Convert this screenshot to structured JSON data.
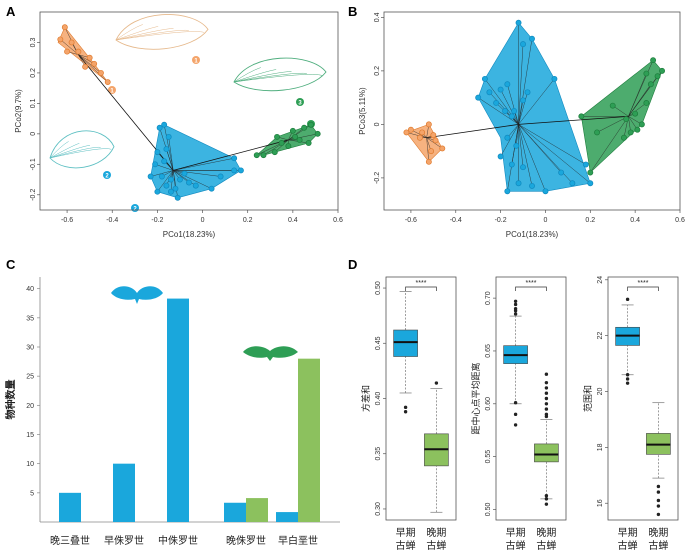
{
  "colors": {
    "orange": "#f4a46a",
    "orange_dark": "#e07b2e",
    "blue": "#1aa7dc",
    "blue_dark": "#1089bf",
    "green": "#2e9e55",
    "green_dark": "#1d7d3c",
    "light_green": "#8cc15e",
    "light_green_dark": "#6a9e3e",
    "wing_orange": "#e6b98c",
    "wing_green": "#4fae7e",
    "wing_teal": "#5cbfc2"
  },
  "panels": {
    "A": "A",
    "B": "B",
    "C": "C",
    "D": "D"
  },
  "chart_data": [
    {
      "id": "A",
      "type": "scatter",
      "xlabel": "PCo1(18.23%)",
      "ylabel": "PCo2(9.7%)",
      "xlim": [
        -0.72,
        0.6
      ],
      "ylim": [
        -0.25,
        0.4
      ],
      "xticks": [
        "-0.6",
        "-0.4",
        "-0.2",
        "0",
        "0.2",
        "0.4",
        "0.6"
      ],
      "xtick_values": [
        -0.6,
        -0.4,
        -0.2,
        0,
        0.2,
        0.4,
        0.6
      ],
      "yticks": [
        "-0.2",
        "-0.1",
        "0",
        "0.1",
        "0.2",
        "0.3"
      ],
      "ytick_values": [
        -0.2,
        -0.1,
        0,
        0.1,
        0.2,
        0.3
      ],
      "group_labels": [
        "1",
        "2",
        "3"
      ],
      "groups": [
        {
          "name": "1",
          "color": "orange",
          "hull": [
            [
              -0.61,
              0.35
            ],
            [
              -0.48,
              0.23
            ],
            [
              -0.42,
              0.17
            ],
            [
              -0.64,
              0.3
            ]
          ],
          "points": [
            [
              -0.61,
              0.35
            ],
            [
              -0.58,
              0.3
            ],
            [
              -0.6,
              0.27
            ],
            [
              -0.55,
              0.27
            ],
            [
              -0.5,
              0.25
            ],
            [
              -0.52,
              0.22
            ],
            [
              -0.48,
              0.23
            ],
            [
              -0.42,
              0.17
            ],
            [
              -0.45,
              0.2
            ],
            [
              -0.63,
              0.31
            ]
          ]
        },
        {
          "name": "2",
          "color": "blue",
          "hull": [
            [
              -0.19,
              0.02
            ],
            [
              -0.17,
              0.03
            ],
            [
              0.14,
              -0.08
            ],
            [
              0.17,
              -0.12
            ],
            [
              0.04,
              -0.18
            ],
            [
              -0.11,
              -0.21
            ],
            [
              -0.2,
              -0.19
            ],
            [
              -0.23,
              -0.14
            ],
            [
              -0.21,
              -0.06
            ]
          ],
          "points": [
            [
              -0.19,
              0.02
            ],
            [
              -0.17,
              0.03
            ],
            [
              -0.15,
              -0.01
            ],
            [
              -0.16,
              -0.05
            ],
            [
              -0.2,
              -0.06
            ],
            [
              -0.17,
              -0.09
            ],
            [
              -0.21,
              -0.1
            ],
            [
              -0.23,
              -0.14
            ],
            [
              -0.18,
              -0.14
            ],
            [
              -0.14,
              -0.15
            ],
            [
              -0.1,
              -0.15
            ],
            [
              -0.12,
              -0.18
            ],
            [
              -0.16,
              -0.17
            ],
            [
              -0.2,
              -0.19
            ],
            [
              -0.11,
              -0.21
            ],
            [
              -0.06,
              -0.16
            ],
            [
              -0.03,
              -0.17
            ],
            [
              0.04,
              -0.18
            ],
            [
              0.08,
              -0.14
            ],
            [
              0.14,
              -0.12
            ],
            [
              0.17,
              -0.12
            ],
            [
              0.14,
              -0.08
            ],
            [
              -0.14,
              -0.19
            ],
            [
              -0.08,
              -0.13
            ]
          ]
        },
        {
          "name": "3",
          "color": "green",
          "hull": [
            [
              0.33,
              -0.01
            ],
            [
              0.48,
              0.03
            ],
            [
              0.51,
              0.0
            ],
            [
              0.47,
              -0.03
            ],
            [
              0.27,
              -0.07
            ],
            [
              0.24,
              -0.07
            ]
          ],
          "points": [
            [
              0.33,
              -0.01
            ],
            [
              0.4,
              0.01
            ],
            [
              0.45,
              0.02
            ],
            [
              0.48,
              0.03
            ],
            [
              0.51,
              0.0
            ],
            [
              0.47,
              -0.03
            ],
            [
              0.43,
              -0.02
            ],
            [
              0.38,
              -0.04
            ],
            [
              0.32,
              -0.06
            ],
            [
              0.27,
              -0.07
            ],
            [
              0.24,
              -0.07
            ],
            [
              0.35,
              -0.03
            ],
            [
              0.41,
              -0.01
            ]
          ]
        }
      ],
      "centroids": [
        [
          -0.55,
          0.26
        ],
        [
          -0.13,
          -0.12
        ],
        [
          0.38,
          -0.02
        ]
      ]
    },
    {
      "id": "B",
      "type": "scatter",
      "xlabel": "PCo1(18.23%)",
      "ylabel": "PCo3(5.11%)",
      "xlim": [
        -0.72,
        0.6
      ],
      "ylim": [
        -0.32,
        0.42
      ],
      "xticks": [
        "-0.6",
        "-0.4",
        "-0.2",
        "0",
        "0.2",
        "0.4",
        "0.6"
      ],
      "xtick_values": [
        -0.6,
        -0.4,
        -0.2,
        0,
        0.2,
        0.4,
        0.6
      ],
      "yticks": [
        "-0.2",
        "0",
        "0.2",
        "0.4"
      ],
      "ytick_values": [
        -0.2,
        0,
        0.2,
        0.4
      ],
      "groups": [
        {
          "name": "1",
          "color": "orange",
          "hull": [
            [
              -0.52,
              0.0
            ],
            [
              -0.46,
              -0.09
            ],
            [
              -0.52,
              -0.14
            ],
            [
              -0.62,
              -0.03
            ]
          ],
          "points": [
            [
              -0.52,
              0.0
            ],
            [
              -0.55,
              -0.03
            ],
            [
              -0.6,
              -0.02
            ],
            [
              -0.62,
              -0.03
            ],
            [
              -0.5,
              -0.04
            ],
            [
              -0.49,
              -0.06
            ],
            [
              -0.46,
              -0.09
            ],
            [
              -0.51,
              -0.1
            ],
            [
              -0.52,
              -0.14
            ],
            [
              -0.56,
              -0.05
            ]
          ]
        },
        {
          "name": "2",
          "color": "blue",
          "hull": [
            [
              -0.12,
              0.38
            ],
            [
              -0.06,
              0.32
            ],
            [
              0.04,
              0.17
            ],
            [
              0.2,
              -0.22
            ],
            [
              0.0,
              -0.25
            ],
            [
              -0.17,
              -0.25
            ],
            [
              -0.2,
              -0.05
            ],
            [
              -0.3,
              0.1
            ],
            [
              -0.27,
              0.17
            ]
          ],
          "points": [
            [
              -0.12,
              0.38
            ],
            [
              -0.06,
              0.32
            ],
            [
              -0.1,
              0.3
            ],
            [
              -0.17,
              0.15
            ],
            [
              -0.2,
              0.13
            ],
            [
              -0.25,
              0.12
            ],
            [
              -0.3,
              0.1
            ],
            [
              -0.27,
              0.17
            ],
            [
              -0.22,
              0.08
            ],
            [
              -0.18,
              0.05
            ],
            [
              -0.15,
              0.03
            ],
            [
              -0.14,
              0.05
            ],
            [
              -0.1,
              0.09
            ],
            [
              -0.08,
              0.12
            ],
            [
              0.04,
              0.17
            ],
            [
              -0.17,
              -0.05
            ],
            [
              -0.13,
              -0.08
            ],
            [
              -0.15,
              -0.15
            ],
            [
              -0.1,
              -0.16
            ],
            [
              -0.17,
              -0.25
            ],
            [
              -0.12,
              -0.22
            ],
            [
              -0.06,
              -0.23
            ],
            [
              0.0,
              -0.25
            ],
            [
              0.07,
              -0.18
            ],
            [
              0.12,
              -0.22
            ],
            [
              0.2,
              -0.22
            ],
            [
              0.18,
              -0.15
            ],
            [
              -0.2,
              -0.12
            ]
          ]
        },
        {
          "name": "3",
          "color": "green",
          "hull": [
            [
              0.48,
              0.24
            ],
            [
              0.52,
              0.2
            ],
            [
              0.43,
              0.0
            ],
            [
              0.2,
              -0.18
            ],
            [
              0.16,
              0.03
            ]
          ],
          "points": [
            [
              0.48,
              0.24
            ],
            [
              0.52,
              0.2
            ],
            [
              0.5,
              0.18
            ],
            [
              0.45,
              0.19
            ],
            [
              0.47,
              0.15
            ],
            [
              0.45,
              0.08
            ],
            [
              0.43,
              0.0
            ],
            [
              0.41,
              -0.02
            ],
            [
              0.4,
              0.04
            ],
            [
              0.38,
              -0.03
            ],
            [
              0.36,
              0.02
            ],
            [
              0.3,
              0.07
            ],
            [
              0.23,
              -0.03
            ],
            [
              0.2,
              -0.18
            ],
            [
              0.16,
              0.03
            ],
            [
              0.35,
              -0.05
            ]
          ]
        }
      ],
      "centroids": [
        [
          -0.53,
          -0.05
        ],
        [
          -0.12,
          0.0
        ],
        [
          0.37,
          0.03
        ]
      ]
    },
    {
      "id": "C",
      "type": "bar",
      "ylabel": "物种数量",
      "ylim": [
        0,
        42
      ],
      "yticks": [
        "5",
        "10",
        "15",
        "20",
        "25",
        "30",
        "35",
        "40"
      ],
      "ytick_values": [
        5,
        10,
        15,
        20,
        25,
        30,
        35,
        40
      ],
      "categories": [
        "晚三叠世",
        "早侏罗世",
        "中侏罗世",
        "晚侏罗世",
        "早白垩世"
      ],
      "series": [
        {
          "name": "早期古蝉",
          "color": "blue",
          "values": [
            5,
            10,
            38.3,
            3.3,
            1.7
          ]
        },
        {
          "name": "晚期古蝉",
          "color": "light_green",
          "values": [
            null,
            null,
            null,
            4.1,
            28
          ]
        }
      ]
    },
    {
      "id": "D",
      "type": "boxplot",
      "significance": "****",
      "plots": [
        {
          "ylabel": "方差和",
          "ylim": [
            0.29,
            0.51
          ],
          "yticks": [
            "0.30",
            "0.35",
            "0.40",
            "0.45",
            "0.50"
          ],
          "ytick_values": [
            0.3,
            0.35,
            0.4,
            0.45,
            0.5
          ],
          "boxes": [
            {
              "label": "早期 古蝉",
              "color": "blue",
              "whisker_low": 0.405,
              "q1": 0.438,
              "median": 0.451,
              "q3": 0.462,
              "whisker_high": 0.497,
              "outliers": [
                0.388,
                0.392
              ]
            },
            {
              "label": "晚期 古蝉",
              "color": "light_green",
              "whisker_low": 0.297,
              "q1": 0.339,
              "median": 0.354,
              "q3": 0.368,
              "whisker_high": 0.409,
              "outliers": [
                0.414
              ]
            }
          ]
        },
        {
          "ylabel": "距中心点平均距离",
          "ylim": [
            0.49,
            0.72
          ],
          "yticks": [
            "0.50",
            "0.55",
            "0.60",
            "0.65",
            "0.70"
          ],
          "ytick_values": [
            0.5,
            0.55,
            0.6,
            0.65,
            0.7
          ],
          "boxes": [
            {
              "label": "早期 古蝉",
              "color": "blue",
              "whisker_low": 0.6,
              "q1": 0.638,
              "median": 0.646,
              "q3": 0.655,
              "whisker_high": 0.683,
              "outliers": [
                0.58,
                0.59,
                0.601,
                0.685,
                0.688,
                0.69,
                0.694,
                0.697
              ]
            },
            {
              "label": "晚期 古蝉",
              "color": "light_green",
              "whisker_low": 0.51,
              "q1": 0.545,
              "median": 0.552,
              "q3": 0.562,
              "whisker_high": 0.585,
              "outliers": [
                0.505,
                0.51,
                0.513,
                0.588,
                0.59,
                0.595,
                0.6,
                0.605,
                0.61,
                0.615,
                0.62,
                0.628
              ]
            }
          ]
        },
        {
          "ylabel": "范围和",
          "ylim": [
            15.4,
            24.1
          ],
          "yticks": [
            "16",
            "18",
            "20",
            "22",
            "24"
          ],
          "ytick_values": [
            16,
            18,
            20,
            22,
            24
          ],
          "boxes": [
            {
              "label": "早期 古蝉",
              "color": "blue",
              "whisker_low": 20.6,
              "q1": 21.65,
              "median": 22.0,
              "q3": 22.3,
              "whisker_high": 23.1,
              "outliers": [
                20.3,
                20.45,
                20.6,
                23.3
              ]
            },
            {
              "label": "晚期 古蝉",
              "color": "light_green",
              "whisker_low": 16.9,
              "q1": 17.75,
              "median": 18.1,
              "q3": 18.5,
              "whisker_high": 19.6,
              "outliers": [
                15.6,
                15.9,
                16.1,
                16.4,
                16.6
              ]
            }
          ]
        }
      ]
    }
  ]
}
